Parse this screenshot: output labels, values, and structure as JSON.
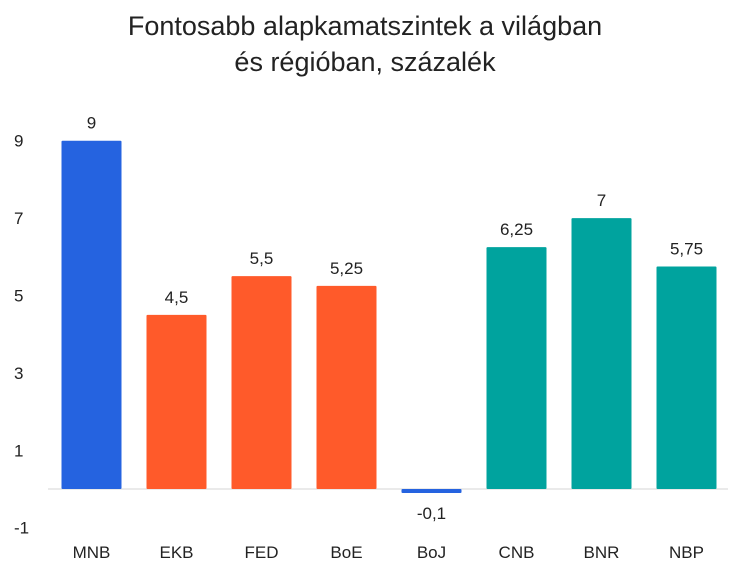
{
  "chart_data": {
    "type": "bar",
    "title_line1": "Fontosabb alapkamatszintek a világban",
    "title_line2": "és régióban, százalék",
    "categories": [
      "MNB",
      "EKB",
      "FED",
      "BoE",
      "BoJ",
      "CNB",
      "BNR",
      "NBP"
    ],
    "values": [
      9,
      4.5,
      5.5,
      5.25,
      -0.1,
      6.25,
      7,
      5.75
    ],
    "data_labels": [
      "9",
      "4,5",
      "5,5",
      "5,25",
      "-0,1",
      "6,25",
      "7",
      "5,75"
    ],
    "bar_colors": [
      "#2563e0",
      "#ff5a2a",
      "#ff5a2a",
      "#ff5a2a",
      "#2563e0",
      "#00a39e",
      "#00a39e",
      "#00a39e"
    ],
    "y_ticks": [
      9,
      7,
      5,
      3,
      1,
      -1
    ],
    "ylim": [
      -1,
      9
    ],
    "grid": false,
    "legend": "none"
  }
}
